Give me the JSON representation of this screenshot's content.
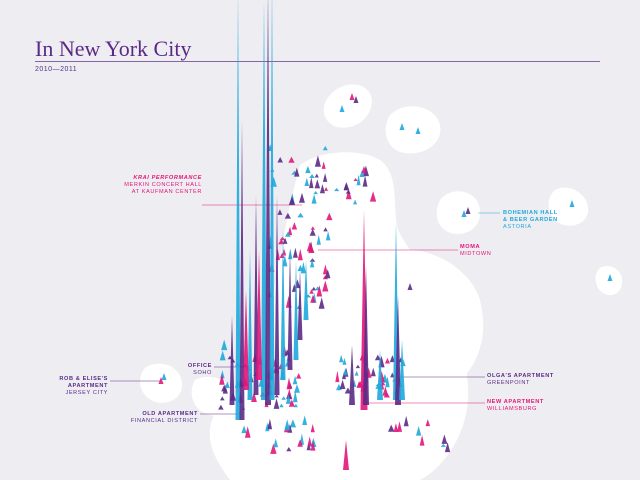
{
  "header": {
    "title": "In New York City",
    "subtitle": "2010—2011"
  },
  "colors": {
    "purple": "#5b2a86",
    "magenta": "#e2157a",
    "blue": "#1fa8dc",
    "land": "#ffffff",
    "water": "#eeeef2"
  },
  "labels": [
    {
      "id": "krai",
      "line1": "Krai Performance",
      "line2": "Merkin Concert Hall",
      "line3": "at Kaufman Center",
      "color": "magenta"
    },
    {
      "id": "bohemian",
      "line1": "Bohemian Hall",
      "line2": "& Beer Garden",
      "line3": "Astoria",
      "color": "blue"
    },
    {
      "id": "moma",
      "line1": "MoMA",
      "line2": "Midtown",
      "color": "magenta"
    },
    {
      "id": "office",
      "line1": "Office",
      "line2": "SoHo",
      "color": "purple"
    },
    {
      "id": "rob",
      "line1": "Rob & Elise's",
      "line2": "Apartment",
      "line3": "Jersey City",
      "color": "purple"
    },
    {
      "id": "olga",
      "line1": "Olga's Apartment",
      "line2": "Greenpoint",
      "color": "purple"
    },
    {
      "id": "newapt",
      "line1": "New Apartment",
      "line2": "Williamsburg",
      "color": "magenta"
    },
    {
      "id": "oldapt",
      "line1": "Old Apartment",
      "line2": "Financial District",
      "color": "purple"
    }
  ],
  "chart_data": {
    "type": "map-spikes",
    "series": [
      {
        "color": "blue"
      },
      {
        "color": "purple"
      },
      {
        "color": "magenta"
      }
    ]
  }
}
